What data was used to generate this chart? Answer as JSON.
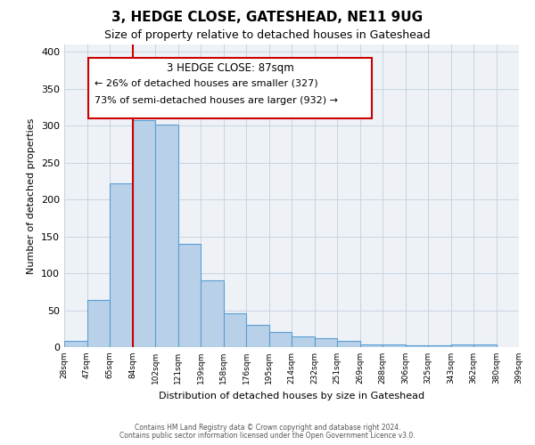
{
  "title": "3, HEDGE CLOSE, GATESHEAD, NE11 9UG",
  "subtitle": "Size of property relative to detached houses in Gateshead",
  "xlabel": "Distribution of detached houses by size in Gateshead",
  "ylabel": "Number of detached properties",
  "bar_values": [
    9,
    64,
    222,
    307,
    302,
    140,
    90,
    46,
    30,
    21,
    15,
    12,
    9,
    4,
    4,
    2,
    2,
    4,
    4
  ],
  "tick_labels": [
    "28sqm",
    "47sqm",
    "65sqm",
    "84sqm",
    "102sqm",
    "121sqm",
    "139sqm",
    "158sqm",
    "176sqm",
    "195sqm",
    "214sqm",
    "232sqm",
    "251sqm",
    "269sqm",
    "288sqm",
    "306sqm",
    "325sqm",
    "343sqm",
    "362sqm",
    "380sqm",
    "399sqm"
  ],
  "bar_color": "#b8d0e8",
  "bar_edge_color": "#5a9fd4",
  "vline_x": 3,
  "vline_color": "#cc0000",
  "ylim": [
    0,
    410
  ],
  "yticks": [
    0,
    50,
    100,
    150,
    200,
    250,
    300,
    350,
    400
  ],
  "annotation_title": "3 HEDGE CLOSE: 87sqm",
  "annotation_line1": "← 26% of detached houses are smaller (327)",
  "annotation_line2": "73% of semi-detached houses are larger (932) →",
  "annotation_box_color": "#cc0000",
  "footer_line1": "Contains HM Land Registry data © Crown copyright and database right 2024.",
  "footer_line2": "Contains public sector information licensed under the Open Government Licence v3.0.",
  "background_color": "#eef2f7",
  "plot_background": "#ffffff"
}
